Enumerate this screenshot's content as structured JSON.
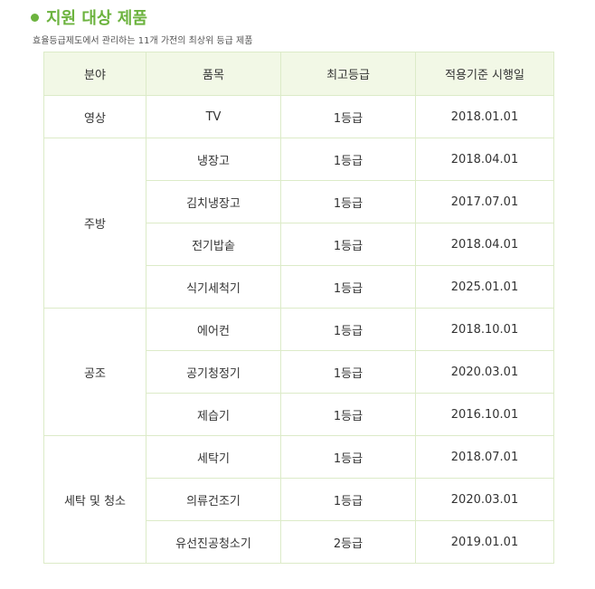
{
  "section": {
    "title": "지원 대상 제품",
    "subtitle": "효율등급제도에서 관리하는 11개 가전의 최상위 등급 제품"
  },
  "table": {
    "headers": [
      "분야",
      "품목",
      "최고등급",
      "적용기준 시행일"
    ],
    "groups": [
      {
        "category": "영상",
        "items": [
          {
            "product": "TV",
            "grade": "1등급",
            "date": "2018.01.01"
          }
        ]
      },
      {
        "category": "주방",
        "items": [
          {
            "product": "냉장고",
            "grade": "1등급",
            "date": "2018.04.01"
          },
          {
            "product": "김치냉장고",
            "grade": "1등급",
            "date": "2017.07.01"
          },
          {
            "product": "전기밥솥",
            "grade": "1등급",
            "date": "2018.04.01"
          },
          {
            "product": "식기세척기",
            "grade": "1등급",
            "date": "2025.01.01"
          }
        ]
      },
      {
        "category": "공조",
        "items": [
          {
            "product": "에어컨",
            "grade": "1등급",
            "date": "2018.10.01"
          },
          {
            "product": "공기청정기",
            "grade": "1등급",
            "date": "2020.03.01"
          },
          {
            "product": "제습기",
            "grade": "1등급",
            "date": "2016.10.01"
          }
        ]
      },
      {
        "category": "세탁 및 청소",
        "items": [
          {
            "product": "세탁기",
            "grade": "1등급",
            "date": "2018.07.01"
          },
          {
            "product": "의류건조기",
            "grade": "1등급",
            "date": "2020.03.01"
          },
          {
            "product": "유선진공청소기",
            "grade": "2등급",
            "date": "2019.01.01"
          }
        ]
      }
    ]
  },
  "colors": {
    "accent": "#6cb33e",
    "header_bg": "#f2f8e6",
    "border": "#dcebc8"
  }
}
